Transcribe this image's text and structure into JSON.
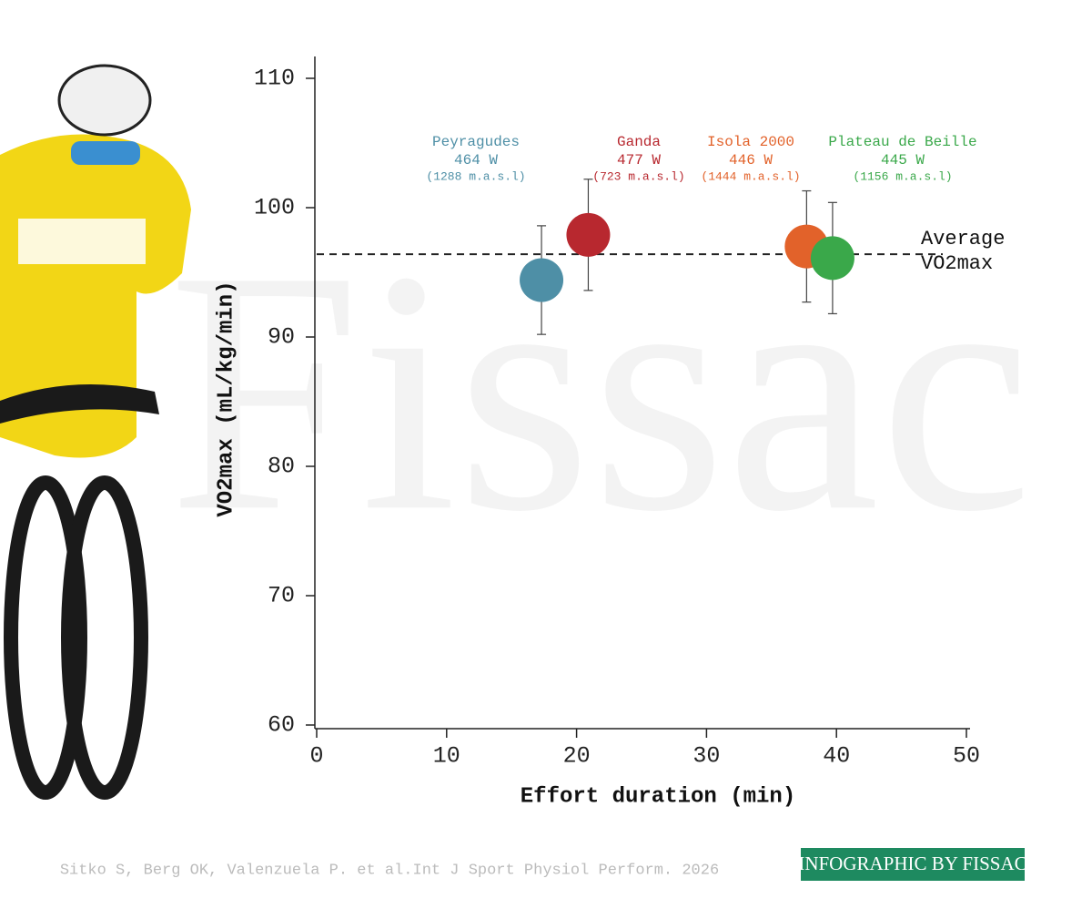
{
  "chart_data": {
    "type": "scatter",
    "watermark": "Fissac",
    "x_label": "Effort duration (min)",
    "y_label": "VO2max (mL/kg/min)",
    "xlim": [
      0,
      50
    ],
    "xticks": [
      0,
      10,
      20,
      30,
      40,
      50
    ],
    "ylim": [
      60,
      110
    ],
    "yticks": [
      60,
      70,
      80,
      90,
      100,
      110
    ],
    "average": 96.4,
    "average_label": [
      "Average",
      "VO2max"
    ],
    "series": [
      {
        "name": "Peyragudes",
        "color": "#4e8fa6",
        "x": [
          17.3
        ],
        "values": [
          94.4
        ],
        "errors": [
          4.2
        ],
        "power": "464 W",
        "altitude": "(1288 m.a.s.l)"
      },
      {
        "name": "Ganda",
        "color": "#b8282f",
        "x": [
          20.9
        ],
        "values": [
          97.9
        ],
        "errors": [
          4.3
        ],
        "power": "477 W",
        "altitude": "(723 m.a.s.l)"
      },
      {
        "name": "Isola 2000",
        "color": "#e2622a",
        "x": [
          37.7
        ],
        "values": [
          97.0
        ],
        "errors": [
          4.3
        ],
        "power": "446 W",
        "altitude": "(1444 m.a.s.l)"
      },
      {
        "name": "Plateau de Beille",
        "color": "#3aa84a",
        "x": [
          39.7
        ],
        "values": [
          96.1
        ],
        "errors": [
          4.3
        ],
        "power": "445 W",
        "altitude": "(1156 m.a.s.l)"
      }
    ],
    "source": "Sitko S, Berg OK, Valenzuela P. et al.Int J Sport Physiol Perform. 2026",
    "badge": "INFOGRAPHIC BY FISSAC"
  }
}
